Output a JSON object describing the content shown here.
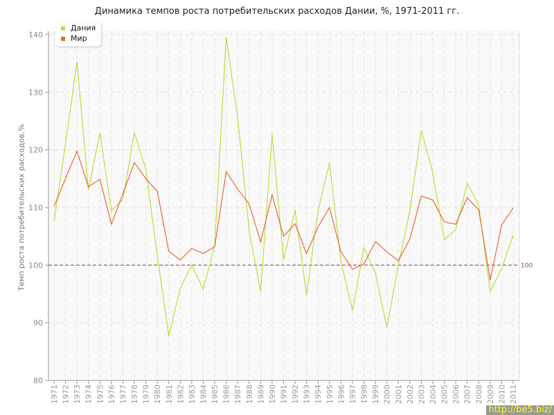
{
  "chart_data": {
    "type": "line",
    "title": "Динамика темпов роста потребительских расходов Дании, %, 1971-2011 гг.",
    "xlabel": "",
    "ylabel": "Темп роста потребительских расходов,%",
    "ylim": [
      80,
      140
    ],
    "yticks": [
      "80",
      "90",
      "100",
      "110",
      "120",
      "130",
      "140"
    ],
    "grid": true,
    "legend_position": "top-left",
    "x": [
      "1971",
      "1972",
      "1973",
      "1974",
      "1975",
      "1976",
      "1977",
      "1978",
      "1979",
      "1980",
      "1981",
      "1982",
      "1983",
      "1984",
      "1985",
      "1986",
      "1987",
      "1988",
      "1989",
      "1990",
      "1991",
      "1992",
      "1993",
      "1994",
      "1995",
      "1996",
      "1997",
      "1998",
      "1999",
      "2000",
      "2001",
      "2002",
      "2003",
      "2004",
      "2005",
      "2006",
      "2007",
      "2008",
      "2009",
      "2010",
      "2011"
    ],
    "series": [
      {
        "name": "Дания",
        "color": "#c0dc3c",
        "values": [
          107.6,
          121,
          135.3,
          113,
          123,
          109.4,
          111.4,
          123,
          116.6,
          101.6,
          87.7,
          96,
          100,
          95.8,
          103.4,
          139.6,
          125.6,
          106,
          95.4,
          122.7,
          100.9,
          109.6,
          94.8,
          109.4,
          117.8,
          100.6,
          92.1,
          103,
          98.6,
          89.2,
          100,
          109.4,
          123.4,
          116,
          104.4,
          106.2,
          114.2,
          110.4,
          95.4,
          99.4,
          105.2
        ]
      },
      {
        "name": "Мир",
        "color": "#e8683a",
        "values": [
          110.2,
          115,
          119.8,
          113.6,
          114.9,
          107.1,
          112.4,
          117.8,
          115,
          112.8,
          102.4,
          100.9,
          102.9,
          102,
          103.2,
          116.2,
          113.2,
          110.6,
          104,
          112.2,
          105,
          107.2,
          102,
          106.6,
          110,
          102.3,
          99.3,
          100.2,
          104.1,
          102.3,
          100.8,
          104.5,
          112,
          111.3,
          107.5,
          107.1,
          111.7,
          109.6,
          97.4,
          107,
          109.9
        ]
      }
    ],
    "reference_line": {
      "value": 100,
      "label": "100",
      "color": "#a04a5a"
    }
  },
  "watermark": "http://be5.biz/"
}
